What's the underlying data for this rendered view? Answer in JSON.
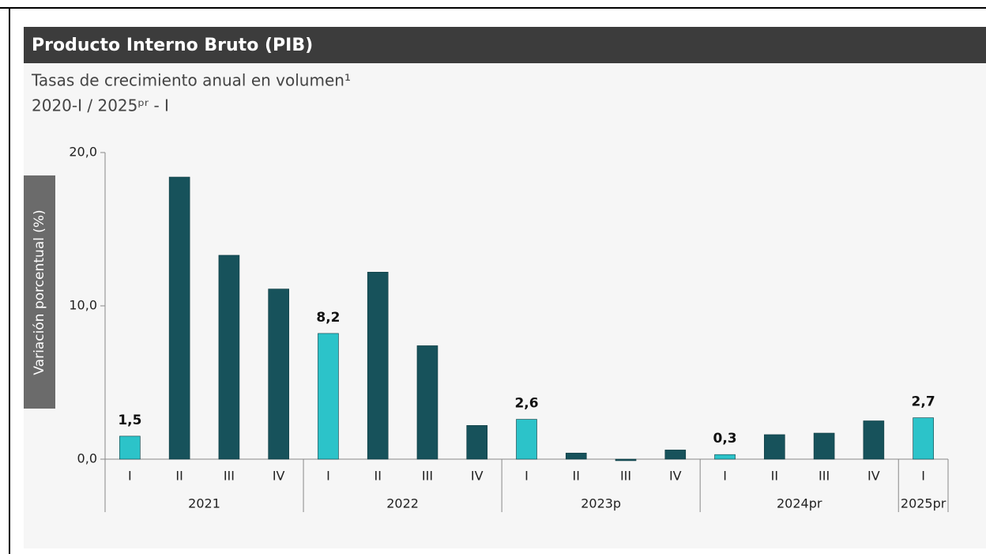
{
  "chart_data": {
    "type": "bar",
    "title": "Producto Interno Bruto (PIB)",
    "subtitle": [
      "Tasas de crecimiento anual en volumen¹",
      "2020-I / 2025ᵖʳ - I"
    ],
    "y_label": "Variación porcentual (%)",
    "categories": [
      "I",
      "II",
      "III",
      "IV",
      "I",
      "II",
      "III",
      "IV",
      "I",
      "II",
      "III",
      "IV",
      "I",
      "II",
      "III",
      "IV",
      "I"
    ],
    "x_groups": [
      {
        "label": "2021",
        "size": 4
      },
      {
        "label": "2022",
        "size": 4
      },
      {
        "label": "2023p",
        "size": 4
      },
      {
        "label": "2024pr",
        "size": 4
      },
      {
        "label": "2025pr",
        "size": 1
      }
    ],
    "values": [
      1.5,
      18.4,
      13.3,
      11.1,
      8.2,
      12.2,
      7.4,
      2.2,
      2.6,
      0.4,
      -0.1,
      0.6,
      0.3,
      1.6,
      1.7,
      2.5,
      2.7
    ],
    "value_labels": [
      "1,5",
      null,
      null,
      null,
      "8,2",
      null,
      null,
      null,
      "2,6",
      null,
      null,
      null,
      "0,3",
      null,
      null,
      null,
      "2,7"
    ],
    "colors": [
      "#2cc3c9",
      "#17525b",
      "#17525b",
      "#17525b",
      "#2cc3c9",
      "#17525b",
      "#17525b",
      "#17525b",
      "#2cc3c9",
      "#17525b",
      "#17525b",
      "#17525b",
      "#2cc3c9",
      "#17525b",
      "#17525b",
      "#17525b",
      "#2cc3c9"
    ],
    "ylim": [
      0,
      20
    ],
    "yticks": [
      {
        "value": 0,
        "label": "0,0"
      },
      {
        "value": 10,
        "label": "10,0"
      },
      {
        "value": 20,
        "label": "20,0"
      }
    ],
    "grid": false
  }
}
